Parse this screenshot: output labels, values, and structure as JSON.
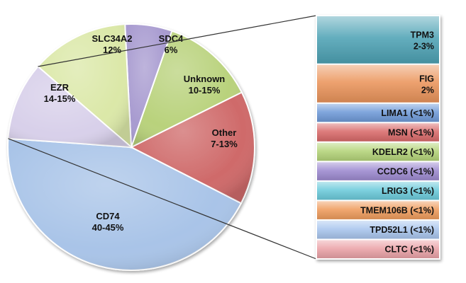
{
  "chart_data": [
    {
      "type": "pie",
      "slices": [
        {
          "label": "CD74",
          "value_text": "40-45%",
          "value": 42.5,
          "color": "#a9c4e8"
        },
        {
          "label": "EZR",
          "value_text": "14-15%",
          "value": 14.5,
          "color": "#cf6a6a"
        },
        {
          "label": "SLC34A2",
          "value_text": "12%",
          "value": 12,
          "color": "#b9d27c"
        },
        {
          "label": "SDC4",
          "value_text": "6%",
          "value": 6,
          "color": "#a89bd0"
        },
        {
          "label": "Unknown",
          "value_text": "10-15%",
          "value": 12.5,
          "color": "#dbe8a8"
        },
        {
          "label": "Other",
          "value_text": "7-13%",
          "value": 10,
          "color": "#d8d0ea"
        }
      ]
    },
    {
      "type": "bar",
      "stacked": true,
      "expands": "Other",
      "segments": [
        {
          "label": "TPM3",
          "value_text": "2-3%",
          "value": 2.5,
          "color": "#4fa3b5"
        },
        {
          "label": "FIG",
          "value_text": "2%",
          "value": 2,
          "color": "#eb955c"
        },
        {
          "label": "LIMA1 (<1%)",
          "value": 1,
          "color": "#6f9ad8"
        },
        {
          "label": "MSN (<1%)",
          "value": 1,
          "color": "#d96a6a"
        },
        {
          "label": "KDELR2 (<1%)",
          "value": 1,
          "color": "#b4d479"
        },
        {
          "label": "CCDC6 (<1%)",
          "value": 1,
          "color": "#9d8ad0"
        },
        {
          "label": "LRIG3 (<1%)",
          "value": 1,
          "color": "#6ccbdb"
        },
        {
          "label": "TMEM106B (<1%)",
          "value": 1,
          "color": "#ef9c5d"
        },
        {
          "label": "TPD52L1 (<1%)",
          "value": 1,
          "color": "#a9c6ee"
        },
        {
          "label": "CLTC (<1%)",
          "value": 1,
          "color": "#eba3a8"
        }
      ]
    }
  ]
}
